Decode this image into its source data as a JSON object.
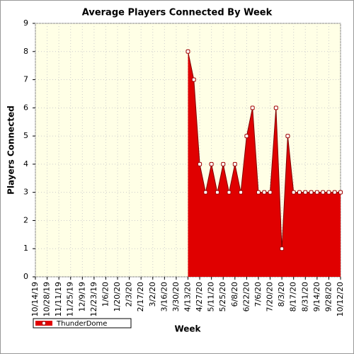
{
  "chart_data": {
    "type": "area",
    "title": "Average Players Connected By Week",
    "x_label": "Week",
    "y_label": "Players Connected",
    "categories": [
      "10/14/19",
      null,
      "10/28/19",
      null,
      "11/11/19",
      null,
      "11/25/19",
      null,
      "12/9/19",
      null,
      "12/23/19",
      null,
      "1/6/20",
      null,
      "1/20/20",
      null,
      "2/3/20",
      null,
      "2/17/20",
      null,
      "3/2/20",
      null,
      "3/16/20",
      null,
      "3/30/20",
      null,
      "4/13/20",
      null,
      "4/27/20",
      null,
      "5/11/20",
      null,
      "5/25/20",
      null,
      "6/8/20",
      null,
      "6/22/20",
      null,
      "7/6/20",
      null,
      "7/20/20",
      null,
      "8/3/20",
      null,
      "8/17/20",
      null,
      "8/31/20",
      null,
      "9/14/20",
      null,
      "9/28/20",
      null,
      "10/12/20"
    ],
    "series": [
      {
        "name": "ThunderDome",
        "color": "#e00000",
        "values": [
          null,
          null,
          null,
          null,
          null,
          null,
          null,
          null,
          null,
          null,
          null,
          null,
          null,
          null,
          null,
          null,
          null,
          null,
          null,
          null,
          null,
          null,
          null,
          null,
          null,
          null,
          8,
          7,
          4,
          3,
          4,
          3,
          4,
          3,
          4,
          3,
          5,
          6,
          3,
          3,
          3,
          6,
          1,
          5,
          3,
          3,
          3,
          3,
          3,
          3,
          3,
          3,
          3
        ]
      }
    ],
    "ylim": [
      0,
      9
    ],
    "yticks": [
      0,
      1,
      2,
      3,
      4,
      5,
      6,
      7,
      8,
      9
    ],
    "grid": true,
    "legend": "bottom-left"
  }
}
